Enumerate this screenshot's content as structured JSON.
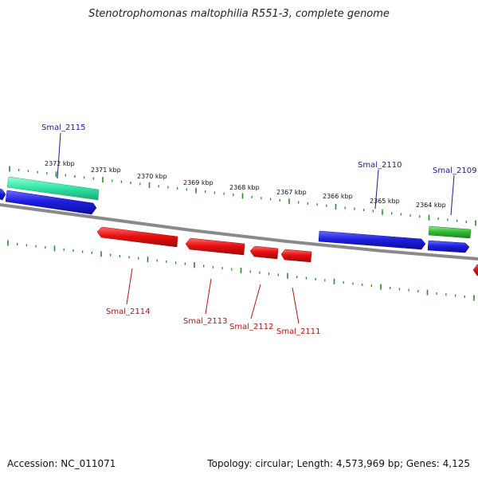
{
  "title": "Stenotrophomonas maltophilia R551-3, complete genome",
  "footer": {
    "accession": "Accession: NC_011071",
    "summary": "Topology: circular; Length: 4,573,969 bp; Genes: 4,125"
  },
  "colors": {
    "forward_strand": "#1f1fe0",
    "reverse_strand": "#e01010",
    "rna_cyan": "#33e8a8",
    "rna_green": "#33bb33",
    "backbone": "#8a8a8a",
    "ticks": "#2a8a2a",
    "forward_label": "#1a1a99",
    "reverse_label": "#bb1111"
  },
  "scale_labels": [
    "2372 kbp",
    "2371 kbp",
    "2370 kbp",
    "2369 kbp",
    "2368 kbp",
    "2367 kbp",
    "2366 kbp",
    "2365 kbp",
    "2364 kbp"
  ],
  "genes": [
    {
      "name": "Smal_2115",
      "strand": "forward",
      "labeled": true
    },
    {
      "name": "Smal_2110",
      "strand": "forward",
      "labeled": true
    },
    {
      "name": "Smal_2109",
      "strand": "forward",
      "labeled": true
    },
    {
      "name": "Smal_2114",
      "strand": "reverse",
      "labeled": true
    },
    {
      "name": "Smal_2113",
      "strand": "reverse",
      "labeled": true
    },
    {
      "name": "Smal_2112",
      "strand": "reverse",
      "labeled": true
    },
    {
      "name": "Smal_2111",
      "strand": "reverse",
      "labeled": true
    }
  ]
}
